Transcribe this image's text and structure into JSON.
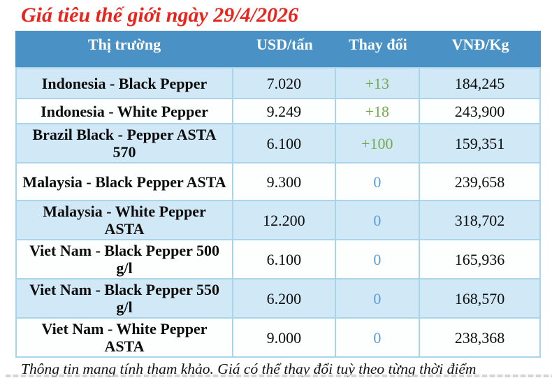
{
  "chart_data": {
    "type": "table",
    "title": "Giá tiêu thế giới ngày 29/4/2026",
    "columns": [
      "Thị trường",
      "USD/tấn",
      "Thay đổi",
      "VNĐ/Kg"
    ],
    "rows": [
      {
        "market": "Indonesia - Black Pepper",
        "usd_per_ton": "7.020",
        "change": "+13",
        "change_type": "up",
        "vnd_per_kg": "184,245"
      },
      {
        "market": "Indonesia - White Pepper",
        "usd_per_ton": "9.249",
        "change": "+18",
        "change_type": "up",
        "vnd_per_kg": "243,900"
      },
      {
        "market": "Brazil Black - Pepper ASTA 570",
        "usd_per_ton": "6.100",
        "change": "+100",
        "change_type": "up",
        "vnd_per_kg": "159,351"
      },
      {
        "market": "Malaysia - Black Pepper ASTA",
        "usd_per_ton": "9.300",
        "change": "0",
        "change_type": "zero",
        "vnd_per_kg": "239,658"
      },
      {
        "market": "Malaysia - White Pepper ASTA",
        "usd_per_ton": "12.200",
        "change": "0",
        "change_type": "zero",
        "vnd_per_kg": "318,702"
      },
      {
        "market": "Viet Nam - Black Pepper 500 g/l",
        "usd_per_ton": "6.100",
        "change": "0",
        "change_type": "zero",
        "vnd_per_kg": "165,936"
      },
      {
        "market": "Viet Nam - Black Pepper 550 g/l",
        "usd_per_ton": "6.200",
        "change": "0",
        "change_type": "zero",
        "vnd_per_kg": "168,570"
      },
      {
        "market": "Viet Nam - White Pepper ASTA",
        "usd_per_ton": "9.000",
        "change": "0",
        "change_type": "zero",
        "vnd_per_kg": "238,368"
      }
    ],
    "note": "Thông tin mang tính tham khảo. Giá có thể thay đổi tuỳ theo từng thời điểm"
  },
  "colors": {
    "title_red": "#ea241c",
    "header_bg": "#4a91c6",
    "header_text": "#ffffff",
    "row_alt_bg": "#d1e9f6",
    "border": "#a9d5ec",
    "change_positive": "#76a84d",
    "change_zero": "#5b9bd5"
  }
}
